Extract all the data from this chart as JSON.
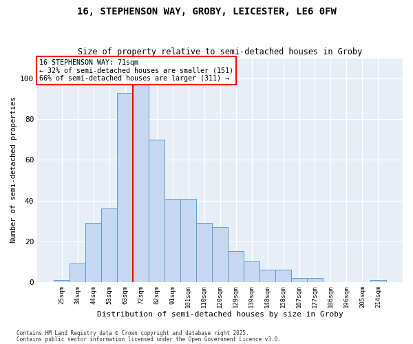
{
  "title_line1": "16, STEPHENSON WAY, GROBY, LEICESTER, LE6 0FW",
  "title_line2": "Size of property relative to semi-detached houses in Groby",
  "xlabel": "Distribution of semi-detached houses by size in Groby",
  "ylabel": "Number of semi-detached properties",
  "categories": [
    "25sqm",
    "34sqm",
    "44sqm",
    "53sqm",
    "63sqm",
    "72sqm",
    "82sqm",
    "91sqm",
    "101sqm",
    "110sqm",
    "120sqm",
    "129sqm",
    "139sqm",
    "148sqm",
    "158sqm",
    "167sqm",
    "177sqm",
    "186sqm",
    "196sqm",
    "205sqm",
    "214sqm"
  ],
  "values": [
    1,
    9,
    29,
    36,
    93,
    101,
    70,
    41,
    41,
    29,
    27,
    15,
    10,
    6,
    6,
    2,
    2,
    0,
    0,
    0,
    1
  ],
  "bar_color": "#c5d8f0",
  "bar_edge_color": "#5b9bd5",
  "vline_pos": 4.5,
  "vline_color": "red",
  "annotation_title": "16 STEPHENSON WAY: 71sqm",
  "annotation_line1": "← 32% of semi-detached houses are smaller (151)",
  "annotation_line2": "66% of semi-detached houses are larger (311) →",
  "annotation_box_edgecolor": "red",
  "footer_line1": "Contains HM Land Registry data © Crown copyright and database right 2025.",
  "footer_line2": "Contains public sector information licensed under the Open Government Licence v3.0.",
  "ylim": [
    0,
    110
  ],
  "yticks": [
    0,
    20,
    40,
    60,
    80,
    100
  ],
  "plot_bg_color": "#e8eef8",
  "grid_color": "#ffffff"
}
